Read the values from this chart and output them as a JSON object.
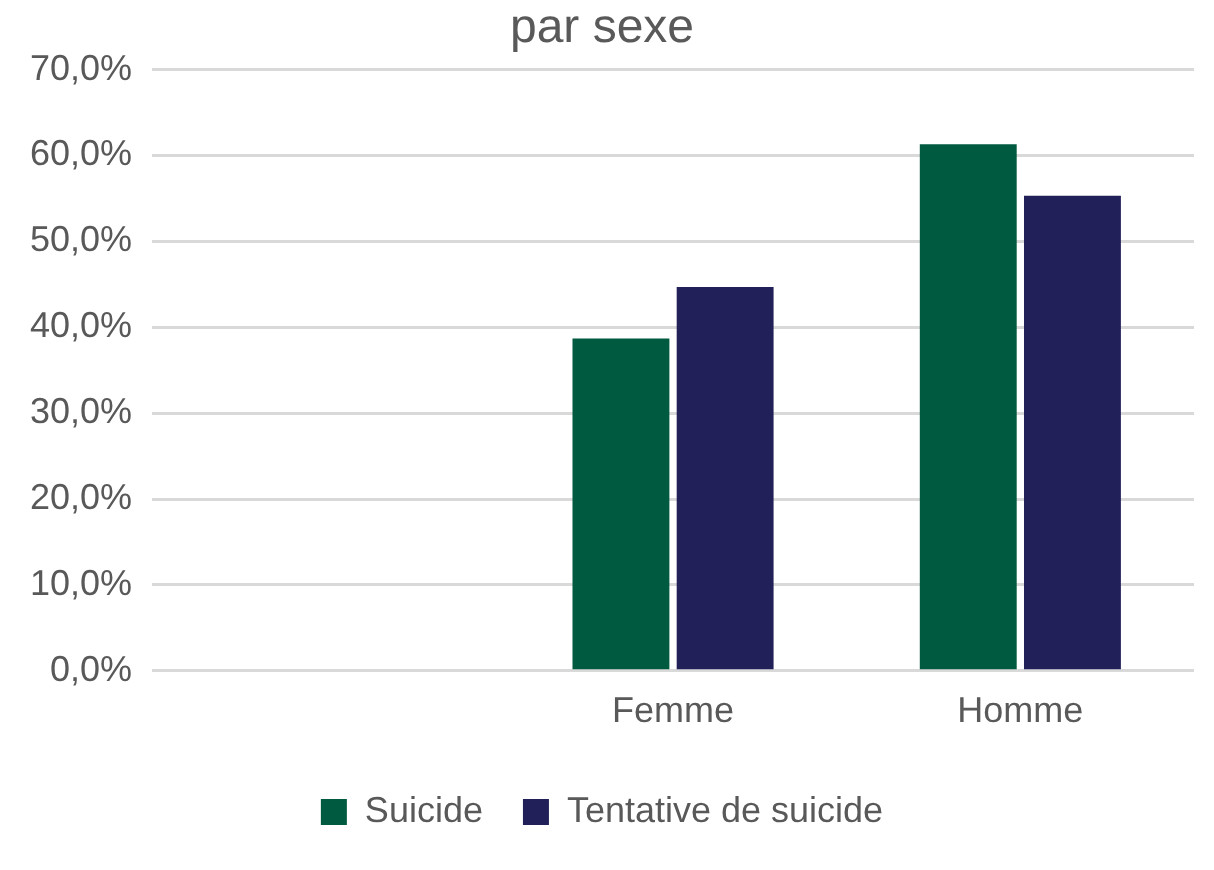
{
  "chart_data": {
    "type": "bar",
    "title": "par sexe",
    "categories": [
      null,
      "Femme",
      "Homme"
    ],
    "series": [
      {
        "name": "Suicide",
        "color": "#005a3f",
        "values": [
          null,
          38.7,
          61.3
        ]
      },
      {
        "name": "Tentative de suicide",
        "color": "#222058",
        "values": [
          null,
          44.7,
          55.3
        ]
      }
    ],
    "ylim": [
      0,
      70
    ],
    "yticks": [
      {
        "value": 0,
        "label": "0,0%"
      },
      {
        "value": 10,
        "label": "10,0%"
      },
      {
        "value": 20,
        "label": "20,0%"
      },
      {
        "value": 30,
        "label": "30,0%"
      },
      {
        "value": 40,
        "label": "40,0%"
      },
      {
        "value": 50,
        "label": "50,0%"
      },
      {
        "value": 60,
        "label": "60,0%"
      },
      {
        "value": 70,
        "label": "70,0%"
      }
    ],
    "grid": "y",
    "legend": "bottom"
  }
}
